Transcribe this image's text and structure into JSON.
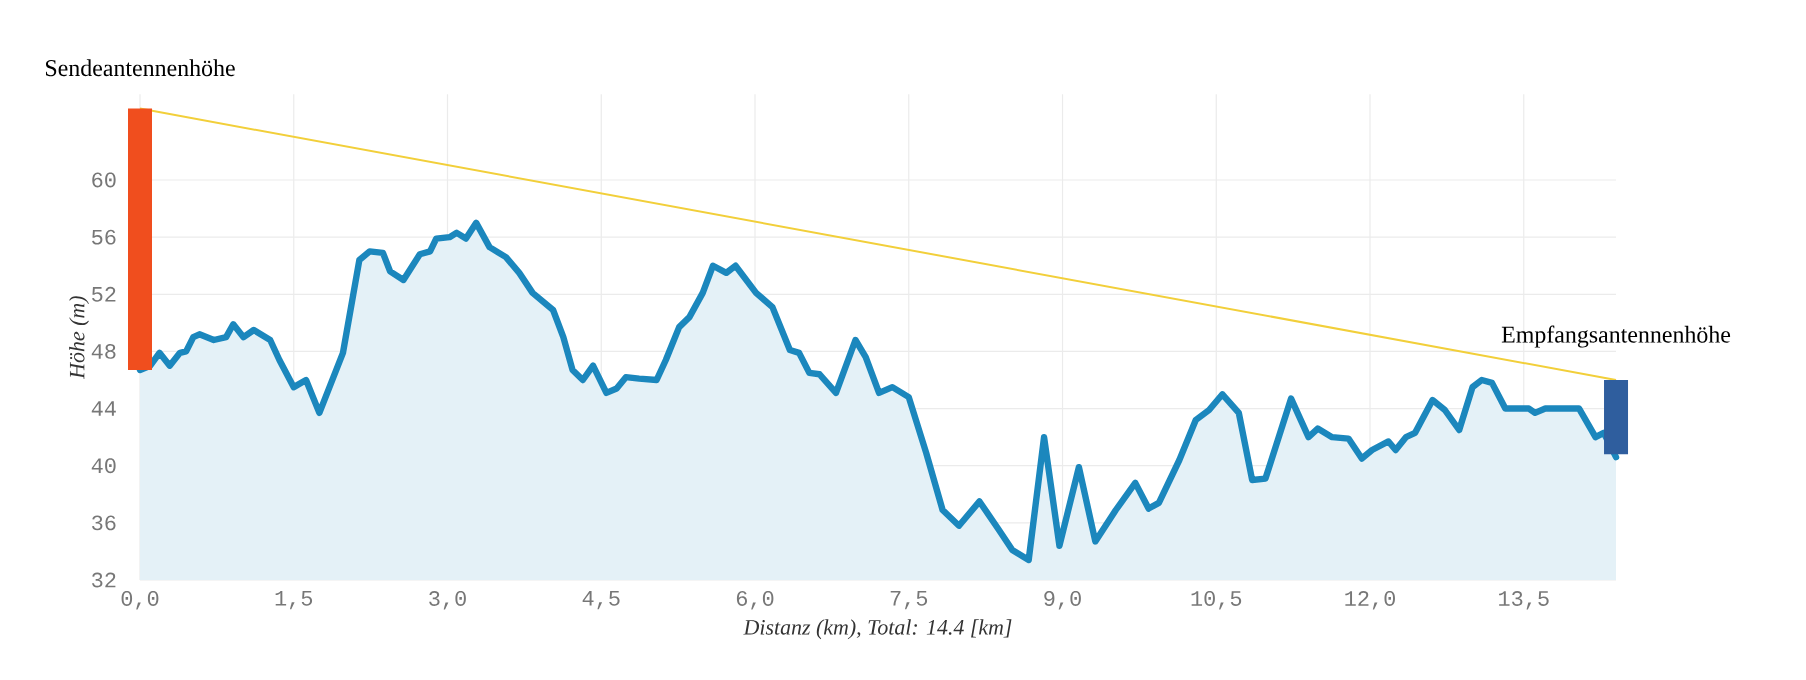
{
  "chart_data": {
    "type": "area",
    "xlabel": "Distanz (km), Total: 14.4 [km]",
    "ylabel": "Höhe (m)",
    "xlim": [
      0,
      14.4
    ],
    "ylim": [
      32,
      66
    ],
    "xticks": [
      {
        "value": 0,
        "label": "0,0"
      },
      {
        "value": 1.5,
        "label": "1,5"
      },
      {
        "value": 3,
        "label": "3,0"
      },
      {
        "value": 4.5,
        "label": "4,5"
      },
      {
        "value": 6,
        "label": "6,0"
      },
      {
        "value": 7.5,
        "label": "7,5"
      },
      {
        "value": 9,
        "label": "9,0"
      },
      {
        "value": 10.5,
        "label": "10,5"
      },
      {
        "value": 12,
        "label": "12,0"
      },
      {
        "value": 13.5,
        "label": "13,5"
      }
    ],
    "yticks": [
      32,
      36,
      40,
      44,
      48,
      52,
      56,
      60
    ],
    "grid": true,
    "series": [
      {
        "color": "#1b87bd",
        "x": [
          0,
          0.1,
          0.19,
          0.29,
          0.39,
          0.45,
          0.52,
          0.58,
          0.72,
          0.84,
          0.91,
          1.01,
          1.11,
          1.27,
          1.36,
          1.5,
          1.62,
          1.75,
          1.98,
          2.14,
          2.24,
          2.37,
          2.44,
          2.57,
          2.73,
          2.83,
          2.89,
          3.02,
          3.09,
          3.18,
          3.28,
          3.41,
          3.57,
          3.7,
          3.83,
          4.03,
          4.13,
          4.22,
          4.32,
          4.42,
          4.55,
          4.65,
          4.74,
          4.87,
          5.04,
          5.13,
          5.26,
          5.36,
          5.49,
          5.59,
          5.72,
          5.81,
          6.01,
          6.17,
          6.34,
          6.43,
          6.53,
          6.63,
          6.79,
          6.98,
          7.08,
          7.21,
          7.34,
          7.5,
          7.67,
          7.83,
          7.99,
          8.19,
          8.38,
          8.51,
          8.67,
          8.82,
          8.97,
          9.16,
          9.32,
          9.52,
          9.71,
          9.84,
          9.94,
          10.14,
          10.3,
          10.43,
          10.56,
          10.72,
          10.85,
          10.98,
          11.23,
          11.4,
          11.49,
          11.63,
          11.79,
          11.92,
          12.02,
          12.18,
          12.25,
          12.35,
          12.44,
          12.61,
          12.73,
          12.87,
          13.0,
          13.09,
          13.19,
          13.32,
          13.55,
          13.61,
          13.71,
          14.04,
          14.2,
          14.28,
          14.4
        ],
        "values": [
          46.7,
          47.0,
          47.9,
          47.0,
          47.9,
          48.0,
          49.0,
          49.2,
          48.8,
          49.0,
          49.9,
          49.0,
          49.5,
          48.8,
          47.4,
          45.5,
          46.0,
          43.7,
          47.9,
          54.4,
          55.0,
          54.9,
          53.6,
          53.0,
          54.8,
          55.0,
          55.9,
          56.0,
          56.3,
          55.9,
          57.0,
          55.3,
          54.6,
          53.5,
          52.1,
          50.9,
          49.0,
          46.7,
          46.0,
          47.0,
          45.1,
          45.4,
          46.2,
          46.1,
          46.0,
          47.4,
          49.7,
          50.4,
          52.1,
          54.0,
          53.5,
          54.0,
          52.1,
          51.1,
          48.1,
          47.9,
          46.5,
          46.4,
          45.1,
          48.8,
          47.6,
          45.1,
          45.5,
          44.8,
          40.9,
          36.9,
          35.8,
          37.5,
          35.5,
          34.1,
          33.4,
          42.0,
          34.4,
          39.9,
          34.7,
          36.9,
          38.8,
          37.0,
          37.4,
          40.4,
          43.2,
          43.9,
          45.0,
          43.7,
          39.0,
          39.1,
          44.7,
          42.0,
          42.6,
          42.0,
          41.9,
          40.5,
          41.1,
          41.7,
          41.1,
          42.0,
          42.3,
          44.6,
          43.9,
          42.5,
          45.5,
          46.0,
          45.8,
          44.0,
          44.0,
          43.7,
          44.0,
          44.0,
          42.0,
          42.3,
          40.6
        ]
      },
      {
        "type": "line",
        "color": "#f2cf3a",
        "x": [
          0,
          14.4
        ],
        "values": [
          65.0,
          46.0
        ]
      },
      {
        "type": "bar",
        "name": "Sendeantennenhöhe",
        "color": "#f04e1e",
        "x": [
          0
        ],
        "base": [
          46.7
        ],
        "values": [
          18.3
        ]
      },
      {
        "type": "bar",
        "name": "Empfangsantennenhöhe",
        "color": "#2f5e9e",
        "x": [
          14.4
        ],
        "base": [
          40.8
        ],
        "values": [
          5.2
        ]
      }
    ]
  }
}
